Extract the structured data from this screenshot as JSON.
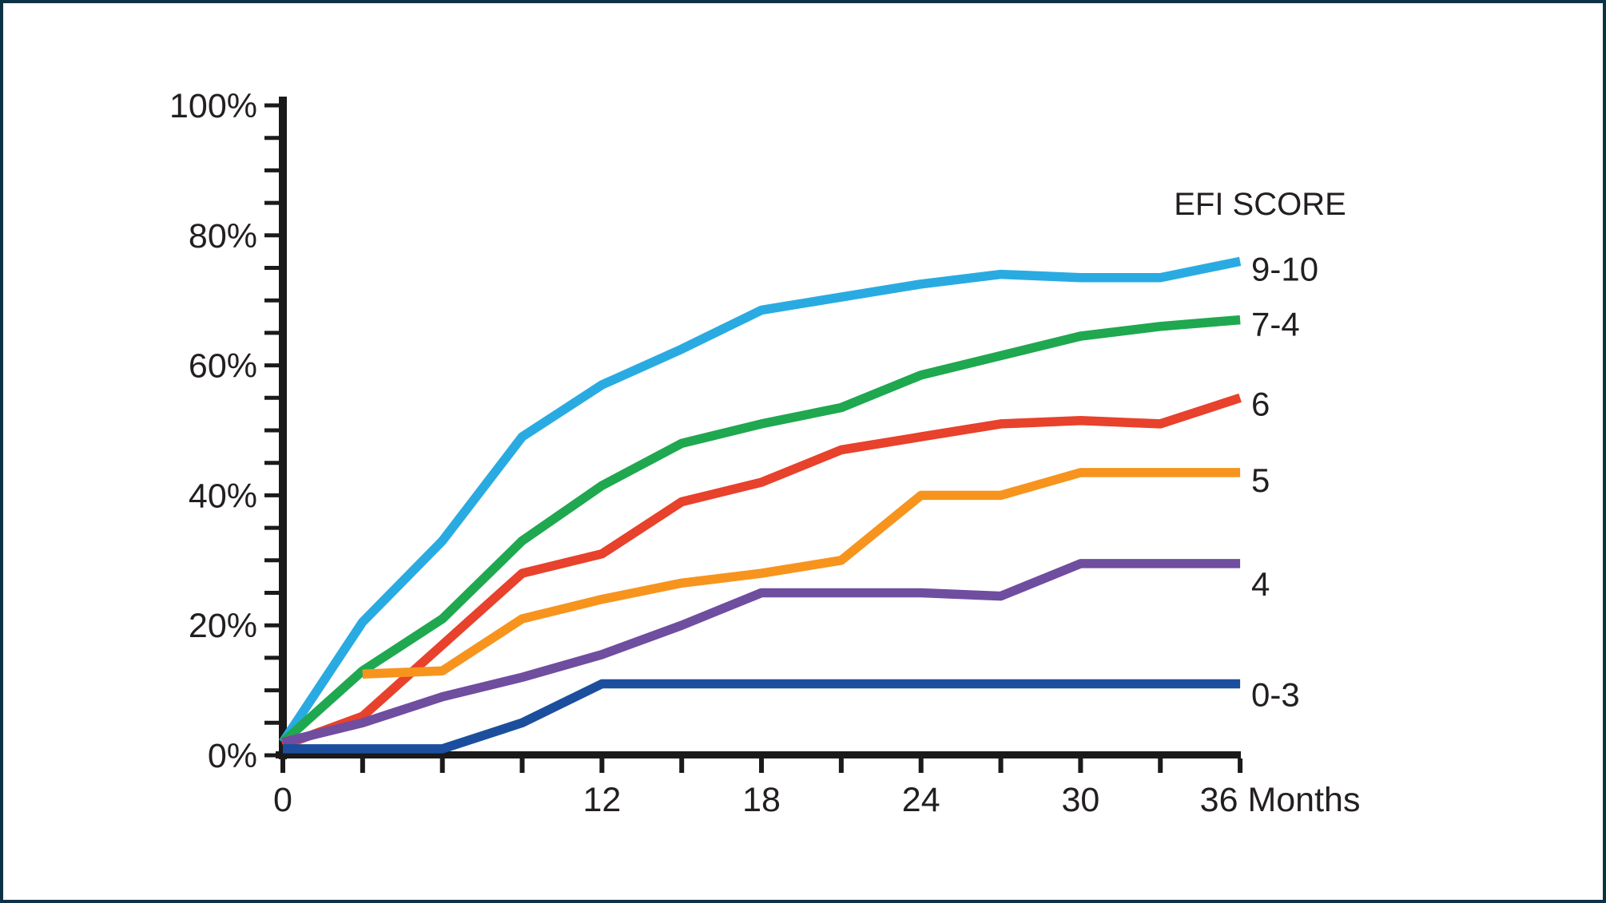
{
  "frame": {
    "background": "#ffffff",
    "border_color": "#0d3246",
    "axis_color": "#1a1a1a",
    "text_color": "#231f20"
  },
  "chart_data": {
    "type": "line",
    "title": "",
    "legend_title": "EFI SCORE",
    "x_unit": "Months",
    "x": [
      0,
      3,
      6,
      9,
      12,
      15,
      18,
      21,
      24,
      27,
      30,
      33,
      36
    ],
    "x_axis": {
      "min": 0,
      "max": 36,
      "tick_step": 3,
      "labeled_ticks": [
        0,
        12,
        18,
        24,
        30,
        36
      ],
      "last_tick_label": "36 Months"
    },
    "y_axis": {
      "min": 0,
      "max": 100,
      "minor_tick_step": 5,
      "label_step": 20,
      "label_suffix": "%",
      "labels": [
        "0%",
        "20%",
        "40%",
        "60%",
        "80%",
        "100%"
      ]
    },
    "grid": "off",
    "legend_position": "right-of-line-ends",
    "series": [
      {
        "name": "9-10",
        "color": "#29abe2",
        "values": [
          2,
          20.5,
          33,
          49,
          57,
          62.5,
          68.5,
          70.5,
          72.5,
          74,
          73.5,
          73.5,
          76
        ]
      },
      {
        "name": "7-4",
        "color": "#1fa84f",
        "values": [
          2,
          13,
          21,
          33,
          41.5,
          48,
          51,
          53.5,
          58.5,
          61.5,
          64.5,
          66,
          67
        ]
      },
      {
        "name": "6",
        "color": "#e8412c",
        "values": [
          1.5,
          6,
          17,
          28,
          31,
          39,
          42,
          47,
          49,
          51,
          51.5,
          51,
          55
        ]
      },
      {
        "name": "5",
        "color": "#f7941e",
        "values": [
          null,
          12.5,
          13,
          21,
          24,
          26.5,
          28,
          30,
          40,
          40,
          43.5,
          43.5,
          43.5
        ]
      },
      {
        "name": "4",
        "color": "#6f4d9f",
        "values": [
          2,
          5,
          9,
          12,
          15.5,
          20,
          25,
          25,
          25,
          24.5,
          29.5,
          29.5,
          29.5
        ]
      },
      {
        "name": "0-3",
        "color": "#1b4f9e",
        "values": [
          1,
          1,
          1,
          5,
          11,
          11,
          11,
          11,
          11,
          11,
          11,
          11,
          11
        ]
      }
    ]
  }
}
